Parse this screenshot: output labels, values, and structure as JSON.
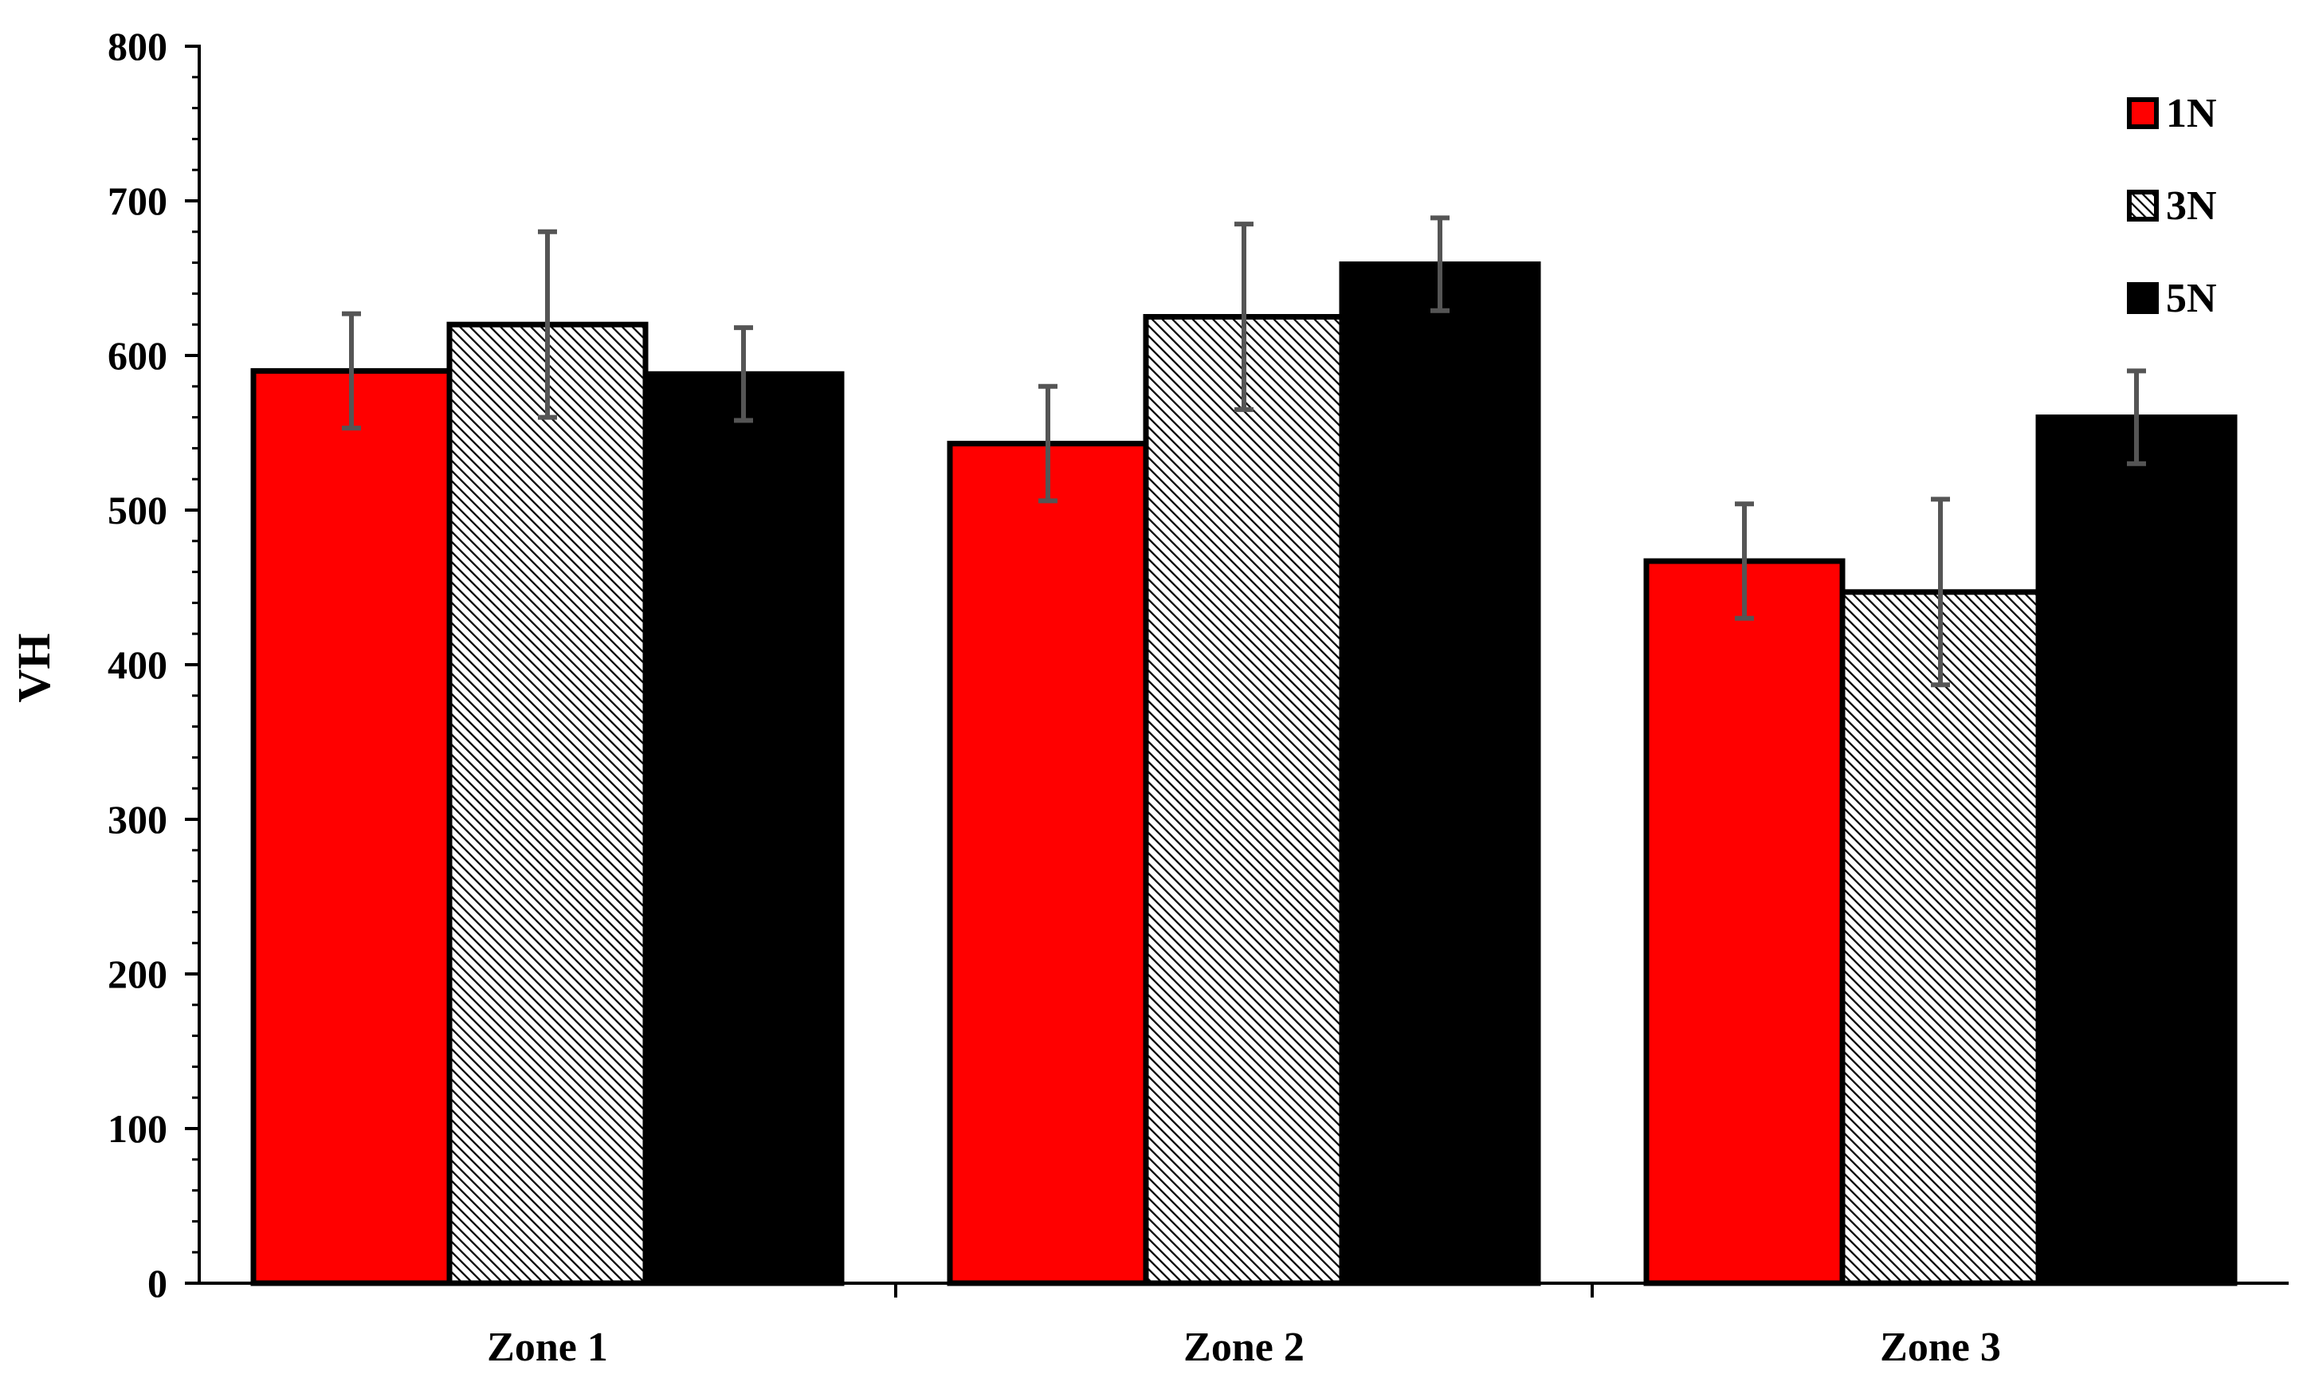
{
  "chart_data": {
    "type": "bar",
    "title": "",
    "xlabel": "",
    "ylabel": "VH",
    "ylim": [
      0,
      800
    ],
    "yticks": [
      "0",
      "100",
      "200",
      "300",
      "400",
      "500",
      "600",
      "700",
      "800"
    ],
    "categories": [
      "Zone 1",
      "Zone 2",
      "Zone 3"
    ],
    "grid": false,
    "legend_position": "top-right",
    "series": [
      {
        "name": "1N",
        "values": [
          590,
          543,
          467
        ],
        "errors": [
          37,
          37,
          37
        ],
        "fill": "#ff0000",
        "pattern": "solid"
      },
      {
        "name": "3N",
        "values": [
          620,
          625,
          447
        ],
        "errors": [
          60,
          60,
          60
        ],
        "fill": "#ffffff",
        "pattern": "diagonal-hatch"
      },
      {
        "name": "5N",
        "values": [
          588,
          659,
          560
        ],
        "errors": [
          30,
          30,
          30
        ],
        "fill": "#000000",
        "pattern": "solid"
      }
    ],
    "error_bar_color": "#555555",
    "axis_color": "#000000"
  }
}
